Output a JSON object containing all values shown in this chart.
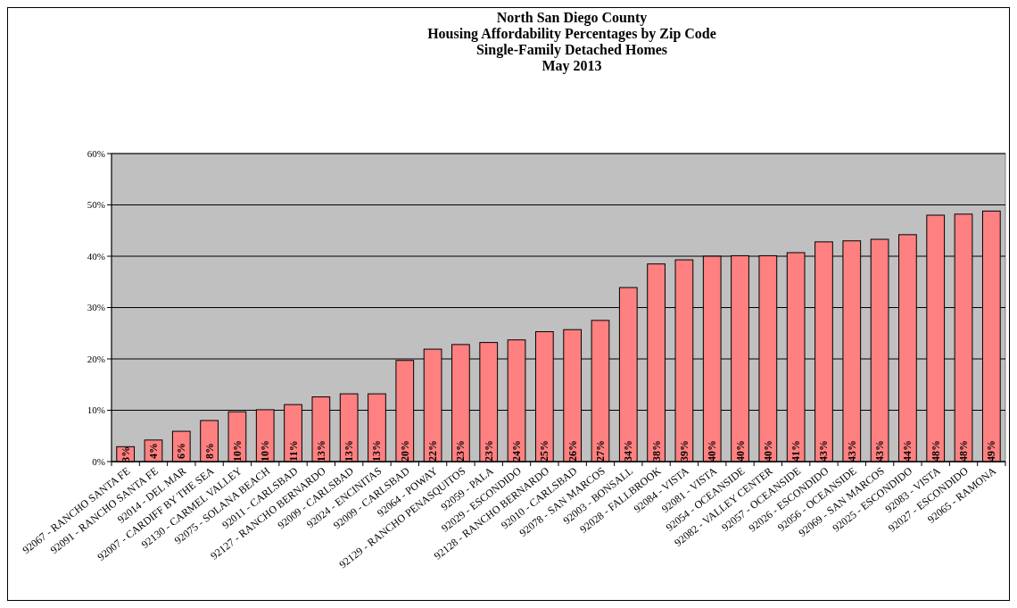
{
  "chart_data": {
    "type": "bar",
    "title": "North San Diego County\nHousing Affordability Percentages by Zip Code\nSingle-Family Detached Homes\nMay 2013",
    "categories": [
      "92067 - RANCHO SANTA FE",
      "92091 - RANCHO SANTA FE",
      "92014 - DEL MAR",
      "92007 - CARDIFF BY THE SEA",
      "92130 - CARMEL VALLEY",
      "92075 - SOLANA BEACH",
      "92011 - CARLSBAD",
      "92127 - RANCHO BERNARDO",
      "92009 - CARLSBAD",
      "92024 - ENCINITAS",
      "92009 - CARLSBAD",
      "92064 - POWAY",
      "92129 - RANCHO PENASQUITOS",
      "92059 - PALA",
      "92029 - ESCONDIDO",
      "92128 - RANCHO BERNARDO",
      "92010 - CARLSBAD",
      "92078 - SAN MARCOS",
      "92003 - BONSALL",
      "92028 - FALLBROOK",
      "92084 - VISTA",
      "92081 - VISTA",
      "92054 - OCEANSIDE",
      "92082 - VALLEY CENTER",
      "92057 - OCEANSIDE",
      "92026 - ESCONDIDO",
      "92056 - OCEANSIDE",
      "92069 - SAN MARCOS",
      "92025 - ESCONDIDO",
      "92083 - VISTA",
      "92027 - ESCONDIDO",
      "92065 - RAMONA"
    ],
    "values": [
      2.9,
      4.2,
      5.9,
      8.0,
      9.7,
      10.1,
      11.1,
      12.6,
      13.2,
      13.2,
      19.7,
      21.9,
      22.8,
      23.2,
      23.7,
      25.3,
      25.7,
      27.5,
      33.9,
      38.5,
      39.3,
      40.0,
      40.1,
      40.1,
      40.7,
      42.8,
      43.0,
      43.3,
      44.2,
      48.0,
      48.2,
      48.8
    ],
    "value_labels": [
      "3%",
      "4%",
      "6%",
      "8%",
      "10%",
      "10%",
      "11%",
      "13%",
      "13%",
      "13%",
      "20%",
      "22%",
      "23%",
      "23%",
      "24%",
      "25%",
      "26%",
      "27%",
      "34%",
      "38%",
      "39%",
      "40%",
      "40%",
      "40%",
      "41%",
      "43%",
      "43%",
      "43%",
      "44%",
      "48%",
      "48%",
      "49%"
    ],
    "color": "#ff8080",
    "ylim": [
      0,
      60
    ],
    "yticks": [
      {
        "value": 0,
        "label": "0%"
      },
      {
        "value": 10,
        "label": "10%"
      },
      {
        "value": 20,
        "label": "20%"
      },
      {
        "value": 30,
        "label": "30%"
      },
      {
        "value": 40,
        "label": "40%"
      },
      {
        "value": 50,
        "label": "50%"
      },
      {
        "value": 60,
        "label": "60%"
      }
    ],
    "grid": "y"
  }
}
